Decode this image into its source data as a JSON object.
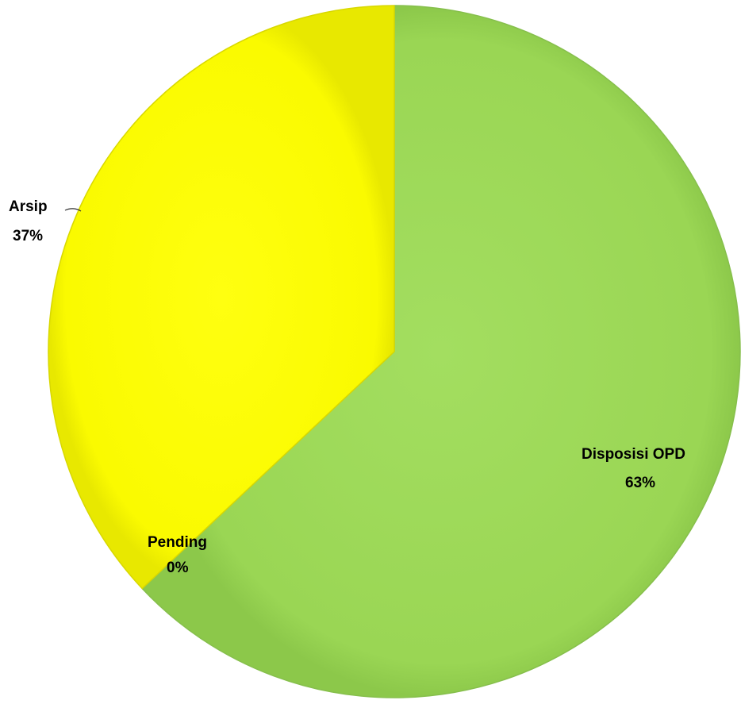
{
  "chart_data": {
    "type": "pie",
    "title": "",
    "start_angle_deg": 0,
    "direction": "clockwise",
    "slices": [
      {
        "name": "Disposisi OPD",
        "value": 63,
        "label": "Disposisi OPD",
        "pct_label": "63%",
        "color": "#9ed95a"
      },
      {
        "name": "Pending",
        "value": 0,
        "label": "Pending",
        "pct_label": "0%",
        "color": "#c8d93a"
      },
      {
        "name": "Arsip",
        "value": 37,
        "label": "Arsip",
        "pct_label": "37%",
        "color": "#ffff00"
      }
    ]
  }
}
